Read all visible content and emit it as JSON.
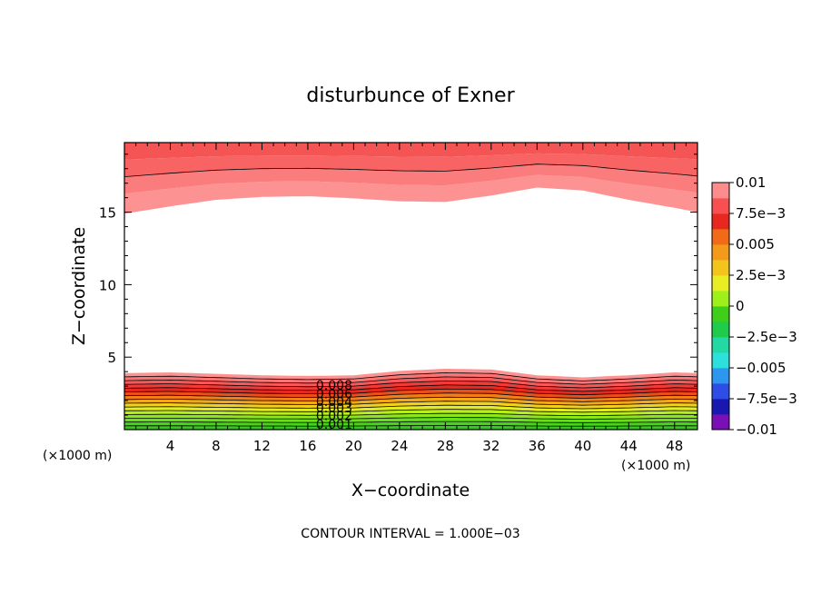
{
  "chart_data": {
    "type": "heatmap",
    "subtype": "filled-contour",
    "title": "disturbunce of Exner",
    "xlabel": "X−coordinate",
    "ylabel": "Z−coordinate",
    "x_unit_label": "(×1000 m)",
    "z_unit_label": "(×1000 m)",
    "footer": "CONTOUR INTERVAL = 1.000E−03",
    "xlim": [
      0,
      50
    ],
    "ylim": [
      0,
      19.8
    ],
    "x_ticks": [
      4,
      8,
      12,
      16,
      20,
      24,
      28,
      32,
      36,
      40,
      44,
      48
    ],
    "x_tick_labels": [
      "4",
      "8",
      "12",
      "16",
      "20",
      "24",
      "28",
      "32",
      "36",
      "40",
      "44",
      "48"
    ],
    "y_ticks": [
      5,
      10,
      15
    ],
    "y_tick_labels": [
      "5",
      "10",
      "15"
    ],
    "contour_interval": 0.001,
    "colorbar": {
      "levels": [
        -0.01,
        -0.0075,
        -0.005,
        -0.0025,
        0,
        0.0025,
        0.005,
        0.0075,
        0.01
      ],
      "tick_labels": [
        "−0.01",
        "−7.5e−3",
        "−0.005",
        "−2.5e−3",
        "0",
        "2.5e−3",
        "0.005",
        "7.5e−3",
        "0.01"
      ],
      "colors": [
        "#7a0fb8",
        "#1818b0",
        "#2d4de6",
        "#2d96ef",
        "#2ce0dc",
        "#22d9a4",
        "#1ecb4a",
        "#3fcf1a",
        "#9ef01a",
        "#e8ee22",
        "#f2c41c",
        "#f39a1c",
        "#f06a18",
        "#e8281e",
        "#f85050",
        "#fd8c8c"
      ]
    },
    "x_profile": [
      0,
      4,
      8,
      12,
      16,
      20,
      24,
      28,
      32,
      36,
      40,
      44,
      48,
      50
    ],
    "lower_top_z": [
      3.9,
      3.95,
      3.85,
      3.75,
      3.7,
      3.75,
      4.05,
      4.2,
      4.15,
      3.75,
      3.6,
      3.75,
      3.95,
      3.9
    ],
    "lower_contour_labels": [
      "0.008",
      "0.006",
      "0.004",
      "0.003",
      "0.002",
      "0.001"
    ],
    "lower_contour_values": [
      0.008,
      0.006,
      0.004,
      0.003,
      0.002,
      0.001
    ],
    "upper_bottom_z": [
      14.9,
      15.4,
      15.85,
      16.05,
      16.1,
      15.95,
      15.75,
      15.7,
      16.15,
      16.7,
      16.5,
      15.85,
      15.3,
      15.0
    ]
  }
}
